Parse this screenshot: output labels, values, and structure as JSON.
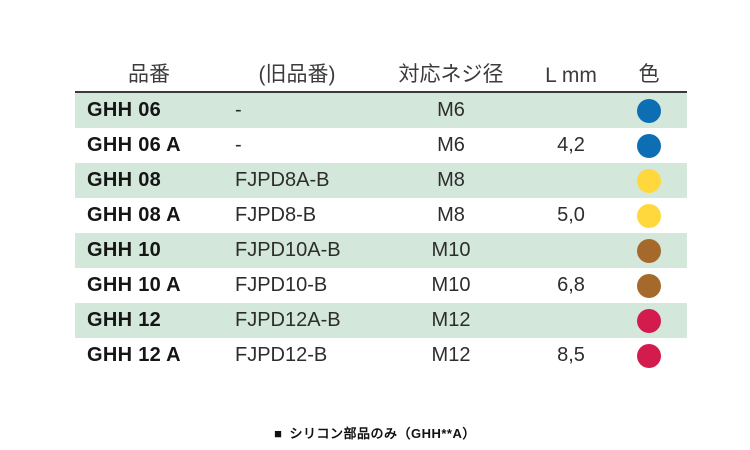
{
  "table": {
    "headers": [
      {
        "label": "品番"
      },
      {
        "label": "(旧品番)"
      },
      {
        "label": "対応ネジ径"
      },
      {
        "label": "L mm"
      },
      {
        "label": "色"
      }
    ],
    "rows": [
      {
        "part": "GHH 06",
        "old_part": "-",
        "screw": "M6",
        "l_mm": "",
        "color": "blue"
      },
      {
        "part": "GHH 06 A",
        "old_part": "-",
        "screw": "M6",
        "l_mm": "4,2",
        "color": "blue"
      },
      {
        "part": "GHH 08",
        "old_part": "FJPD8A-B",
        "screw": "M8",
        "l_mm": "",
        "color": "yellow"
      },
      {
        "part": "GHH 08 A",
        "old_part": "FJPD8-B",
        "screw": "M8",
        "l_mm": "5,0",
        "color": "yellow"
      },
      {
        "part": "GHH 10",
        "old_part": "FJPD10A-B",
        "screw": "M10",
        "l_mm": "",
        "color": "brown"
      },
      {
        "part": "GHH 10 A",
        "old_part": "FJPD10-B",
        "screw": "M10",
        "l_mm": "6,8",
        "color": "brown"
      },
      {
        "part": "GHH 12",
        "old_part": "FJPD12A-B",
        "screw": "M12",
        "l_mm": "",
        "color": "red"
      },
      {
        "part": "GHH 12 A",
        "old_part": "FJPD12-B",
        "screw": "M12",
        "l_mm": "8,5",
        "color": "red"
      }
    ]
  },
  "colors": {
    "blue": "#0d6eb4",
    "yellow": "#fed83c",
    "brown": "#a56a2b",
    "red": "#d31c4d",
    "row_band": "#d3e8da"
  },
  "footnote": {
    "marker": "■",
    "text": "シリコン部品のみ（GHH**A）"
  }
}
